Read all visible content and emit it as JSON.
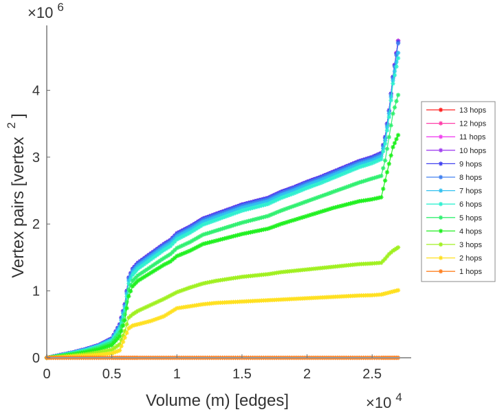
{
  "chart_data": {
    "type": "line",
    "title": "",
    "xlabel": "Volume (m) [edges]",
    "ylabel": "Vertex pairs [vertex",
    "ylabel_superscript": "2",
    "ylabel_close": "]",
    "x_multiplier": "×10",
    "x_multiplier_exp": "4",
    "y_multiplier": "×10",
    "y_multiplier_exp": "6",
    "xlim": [
      0,
      28000
    ],
    "ylim": [
      0,
      4970000
    ],
    "xticks": [
      0,
      5000,
      10000,
      15000,
      20000,
      25000
    ],
    "xtick_labels": [
      "0",
      "0.5",
      "1",
      "1.5",
      "2",
      "2.5"
    ],
    "yticks": [
      0,
      1000000,
      2000000,
      3000000,
      4000000
    ],
    "ytick_labels": [
      "0",
      "1",
      "2",
      "3",
      "4"
    ],
    "grid": false,
    "legend_position": "right",
    "x": [
      0,
      1000,
      2000,
      3000,
      4000,
      5000,
      5600,
      6000,
      6300,
      6600,
      7000,
      8000,
      9000,
      9500,
      10000,
      11000,
      12000,
      13000,
      14000,
      15000,
      16000,
      17000,
      18000,
      19000,
      20000,
      21000,
      22000,
      23000,
      24000,
      25000,
      25700,
      26000,
      26300,
      26600,
      27000
    ],
    "series": [
      {
        "name": "13 hops",
        "color": "#ff2020",
        "values": [
          0,
          40000,
          80000,
          130000,
          190000,
          290000,
          500000,
          800000,
          1200000,
          1330000,
          1420000,
          1560000,
          1700000,
          1760000,
          1860000,
          1960000,
          2080000,
          2150000,
          2220000,
          2290000,
          2340000,
          2390000,
          2480000,
          2550000,
          2630000,
          2700000,
          2780000,
          2860000,
          2940000,
          3000000,
          3060000,
          3300000,
          3700000,
          4200000,
          4740000
        ]
      },
      {
        "name": "12 hops",
        "color": "#ff3ca8",
        "values": [
          0,
          40000,
          80000,
          130000,
          190000,
          290000,
          500000,
          800000,
          1200000,
          1330000,
          1420000,
          1560000,
          1700000,
          1760000,
          1860000,
          1960000,
          2080000,
          2150000,
          2220000,
          2290000,
          2340000,
          2390000,
          2480000,
          2550000,
          2630000,
          2700000,
          2780000,
          2860000,
          2940000,
          3000000,
          3060000,
          3300000,
          3700000,
          4200000,
          4740000
        ]
      },
      {
        "name": "11 hops",
        "color": "#f040f0",
        "values": [
          0,
          40000,
          80000,
          130000,
          190000,
          290000,
          500000,
          800000,
          1200000,
          1330000,
          1420000,
          1560000,
          1700000,
          1760000,
          1860000,
          1960000,
          2080000,
          2150000,
          2220000,
          2290000,
          2340000,
          2390000,
          2480000,
          2550000,
          2630000,
          2700000,
          2780000,
          2860000,
          2940000,
          3000000,
          3060000,
          3300000,
          3700000,
          4200000,
          4740000
        ]
      },
      {
        "name": "10 hops",
        "color": "#a040f0",
        "values": [
          0,
          40000,
          80000,
          130000,
          190000,
          290000,
          500000,
          800000,
          1200000,
          1330000,
          1420000,
          1560000,
          1700000,
          1760000,
          1860000,
          1960000,
          2080000,
          2150000,
          2220000,
          2290000,
          2340000,
          2390000,
          2480000,
          2550000,
          2630000,
          2700000,
          2780000,
          2860000,
          2940000,
          3000000,
          3060000,
          3300000,
          3700000,
          4200000,
          4740000
        ]
      },
      {
        "name": "9 hops",
        "color": "#4040f0",
        "values": [
          0,
          40000,
          80000,
          130000,
          190000,
          290000,
          500000,
          800000,
          1200000,
          1330000,
          1420000,
          1560000,
          1700000,
          1760000,
          1860000,
          1960000,
          2080000,
          2150000,
          2220000,
          2290000,
          2340000,
          2390000,
          2480000,
          2550000,
          2630000,
          2700000,
          2780000,
          2860000,
          2940000,
          3000000,
          3060000,
          3300000,
          3700000,
          4200000,
          4720000
        ]
      },
      {
        "name": "8 hops",
        "color": "#4080f0",
        "values": [
          0,
          38000,
          78000,
          125000,
          185000,
          280000,
          480000,
          780000,
          1180000,
          1310000,
          1400000,
          1540000,
          1680000,
          1740000,
          1840000,
          1940000,
          2060000,
          2130000,
          2200000,
          2270000,
          2320000,
          2370000,
          2460000,
          2530000,
          2610000,
          2680000,
          2760000,
          2840000,
          2920000,
          2980000,
          3040000,
          3280000,
          3680000,
          4180000,
          4700000
        ]
      },
      {
        "name": "7 hops",
        "color": "#30c0f0",
        "values": [
          0,
          36000,
          75000,
          120000,
          180000,
          270000,
          460000,
          760000,
          1150000,
          1280000,
          1370000,
          1510000,
          1650000,
          1710000,
          1810000,
          1910000,
          2030000,
          2100000,
          2170000,
          2240000,
          2290000,
          2340000,
          2430000,
          2500000,
          2580000,
          2650000,
          2730000,
          2810000,
          2890000,
          2950000,
          3010000,
          3250000,
          3650000,
          4150000,
          4560000
        ]
      },
      {
        "name": "6 hops",
        "color": "#30f0d0",
        "values": [
          0,
          33000,
          70000,
          112000,
          170000,
          255000,
          430000,
          720000,
          1110000,
          1240000,
          1330000,
          1470000,
          1610000,
          1670000,
          1770000,
          1870000,
          1990000,
          2060000,
          2130000,
          2200000,
          2250000,
          2300000,
          2390000,
          2460000,
          2540000,
          2610000,
          2690000,
          2770000,
          2850000,
          2910000,
          2970000,
          3200000,
          3600000,
          4100000,
          4480000
        ]
      },
      {
        "name": "5 hops",
        "color": "#30f070",
        "values": [
          0,
          28000,
          60000,
          98000,
          150000,
          225000,
          380000,
          650000,
          1020000,
          1150000,
          1230000,
          1360000,
          1490000,
          1550000,
          1640000,
          1730000,
          1840000,
          1900000,
          1960000,
          2020000,
          2070000,
          2120000,
          2200000,
          2270000,
          2340000,
          2410000,
          2480000,
          2550000,
          2620000,
          2680000,
          2720000,
          2950000,
          3300000,
          3650000,
          3930000
        ]
      },
      {
        "name": "4 hops",
        "color": "#20f020",
        "values": [
          0,
          22000,
          48000,
          80000,
          125000,
          190000,
          320000,
          560000,
          920000,
          1070000,
          1150000,
          1270000,
          1390000,
          1440000,
          1520000,
          1600000,
          1700000,
          1750000,
          1800000,
          1850000,
          1890000,
          1930000,
          2000000,
          2060000,
          2120000,
          2180000,
          2240000,
          2290000,
          2340000,
          2370000,
          2400000,
          2650000,
          2900000,
          3150000,
          3330000
        ]
      },
      {
        "name": "3 hops",
        "color": "#a0f020",
        "values": [
          0,
          15000,
          32000,
          52000,
          80000,
          120000,
          200000,
          400000,
          600000,
          650000,
          700000,
          790000,
          880000,
          930000,
          980000,
          1050000,
          1110000,
          1150000,
          1180000,
          1210000,
          1230000,
          1250000,
          1280000,
          1300000,
          1320000,
          1340000,
          1360000,
          1380000,
          1400000,
          1410000,
          1420000,
          1480000,
          1550000,
          1600000,
          1650000
        ]
      },
      {
        "name": "2 hops",
        "color": "#ffe020",
        "values": [
          0,
          8000,
          18000,
          30000,
          45000,
          65000,
          110000,
          300000,
          440000,
          480000,
          500000,
          550000,
          620000,
          680000,
          740000,
          770000,
          800000,
          820000,
          830000,
          840000,
          850000,
          860000,
          870000,
          880000,
          890000,
          900000,
          910000,
          920000,
          930000,
          935000,
          945000,
          960000,
          975000,
          990000,
          1010000
        ]
      },
      {
        "name": "1 hops",
        "color": "#ff8020",
        "values": [
          0,
          0,
          0,
          0,
          0,
          0,
          0,
          0,
          0,
          0,
          0,
          0,
          0,
          0,
          0,
          0,
          0,
          0,
          0,
          0,
          0,
          0,
          0,
          0,
          0,
          0,
          0,
          0,
          0,
          0,
          0,
          0,
          0,
          0,
          0
        ]
      }
    ]
  }
}
